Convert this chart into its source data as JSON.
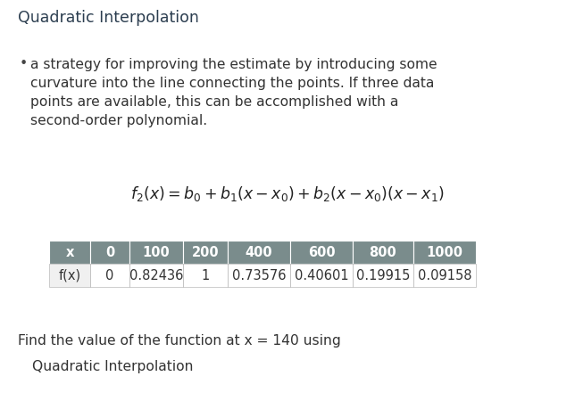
{
  "title": "Quadratic Interpolation",
  "bullet_text": "a strategy for improving the estimate by introducing some\ncurvature into the line connecting the points. If three data\npoints are available, this can be accomplished with a\nsecond-order polynomial.",
  "formula": "$f_2(x) = b_0 + b_1(x - x_0) + b_2(x - x_0)(x - x_1)$",
  "table_headers": [
    "x",
    "0",
    "100",
    "200",
    "400",
    "600",
    "800",
    "1000"
  ],
  "table_row_label": "f(x)",
  "table_values": [
    "0",
    "0.82436",
    "1",
    "0.73576",
    "0.40601",
    "0.19915",
    "0.09158"
  ],
  "footer_line1": "Find the value of the function at x = 140 using",
  "footer_line2": "Quadratic Interpolation",
  "header_bg": "#7a8c8c",
  "header_text_color": "#ffffff",
  "row_bg": "#ffffff",
  "row_text_color": "#333333",
  "bg_color": "#ffffff",
  "title_fontsize": 12.5,
  "body_fontsize": 11.2,
  "formula_fontsize": 12.5,
  "table_fontsize": 10.5,
  "footer_fontsize": 11.2
}
